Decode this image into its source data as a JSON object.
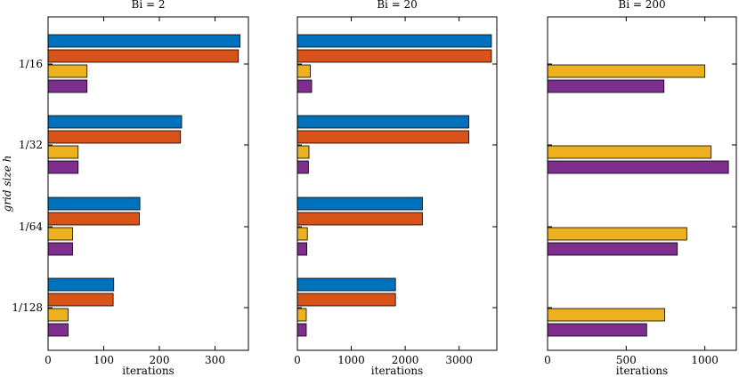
{
  "chart_data": [
    {
      "type": "bar",
      "orientation": "horizontal",
      "title": "Bi = 2",
      "ylabel": "grid size h",
      "xlabel": "iterations",
      "categories": [
        "1/16",
        "1/32",
        "1/64",
        "1/128"
      ],
      "xlim": [
        0,
        360
      ],
      "xticks": [
        0,
        100,
        200,
        300
      ],
      "series": [
        {
          "color": "#0072BD",
          "values": [
            345,
            240,
            165,
            118
          ]
        },
        {
          "color": "#D95319",
          "values": [
            342,
            238,
            164,
            117
          ]
        },
        {
          "color": "#EDB120",
          "values": [
            70,
            54,
            44,
            36
          ]
        },
        {
          "color": "#7E2F8E",
          "values": [
            70,
            54,
            44,
            36
          ]
        }
      ]
    },
    {
      "type": "bar",
      "orientation": "horizontal",
      "title": "Bi = 20",
      "xlabel": "iterations",
      "categories": [
        "1/16",
        "1/32",
        "1/64",
        "1/128"
      ],
      "xlim": [
        0,
        3700
      ],
      "xticks": [
        0,
        1000,
        2000,
        3000
      ],
      "series": [
        {
          "color": "#0072BD",
          "values": [
            3600,
            3180,
            2320,
            1820
          ]
        },
        {
          "color": "#D95319",
          "values": [
            3600,
            3180,
            2320,
            1820
          ]
        },
        {
          "color": "#EDB120",
          "values": [
            240,
            215,
            185,
            165
          ]
        },
        {
          "color": "#7E2F8E",
          "values": [
            265,
            205,
            175,
            165
          ]
        }
      ]
    },
    {
      "type": "bar",
      "orientation": "horizontal",
      "title": "Bi = 200",
      "xlabel": "iterations",
      "categories": [
        "1/16",
        "1/32",
        "1/64",
        "1/128"
      ],
      "xlim": [
        0,
        1200
      ],
      "xticks": [
        0,
        500,
        1000
      ],
      "series": [
        {
          "color": "#0072BD",
          "values": [
            0,
            0,
            0,
            0
          ]
        },
        {
          "color": "#D95319",
          "values": [
            0,
            0,
            0,
            0
          ]
        },
        {
          "color": "#EDB120",
          "values": [
            1000,
            1040,
            885,
            745
          ]
        },
        {
          "color": "#7E2F8E",
          "values": [
            740,
            1150,
            825,
            630
          ]
        }
      ]
    }
  ]
}
